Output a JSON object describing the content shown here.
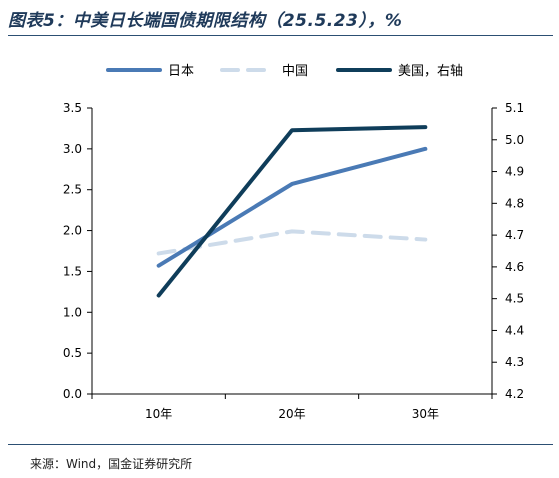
{
  "title": "图表5：中美日长端国债期限结构（25.5.23），%",
  "source": "来源：Wind，国金证券研究所",
  "chart_data": {
    "type": "line",
    "categories": [
      "10年",
      "20年",
      "30年"
    ],
    "ylim_left": [
      0.0,
      3.5
    ],
    "yticks_left": [
      "0.0",
      "0.5",
      "1.0",
      "1.5",
      "2.0",
      "2.5",
      "3.0",
      "3.5"
    ],
    "ylim_right": [
      4.2,
      5.1
    ],
    "yticks_right": [
      "4.2",
      "4.3",
      "4.4",
      "4.5",
      "4.6",
      "4.7",
      "4.8",
      "4.9",
      "5.0",
      "5.1"
    ],
    "grid": false,
    "legend_position": "top",
    "series": [
      {
        "name": "日本",
        "values": [
          1.57,
          2.57,
          3.0
        ],
        "axis": "left",
        "color": "#4a7ab5",
        "style": "solid"
      },
      {
        "name": "中国",
        "values": [
          1.72,
          1.99,
          1.89
        ],
        "axis": "left",
        "color": "#cddbea",
        "style": "dashed"
      },
      {
        "name": "美国，右轴",
        "values": [
          4.51,
          5.03,
          5.04
        ],
        "axis": "right",
        "color": "#0f3d5a",
        "style": "solid"
      }
    ]
  }
}
